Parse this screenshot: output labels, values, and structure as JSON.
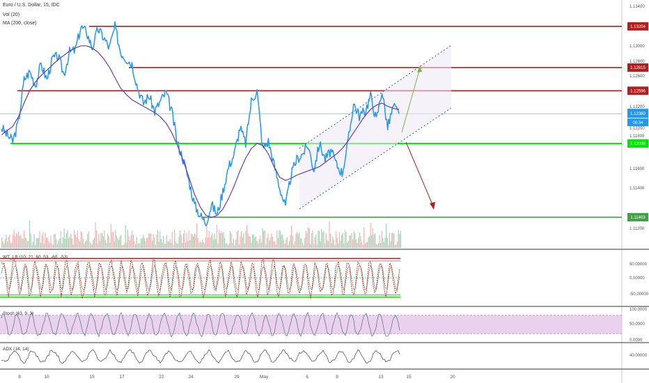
{
  "header": {
    "symbol": "Euro / U.S. Dollar, 15, IDC",
    "volume": "Vol (20)",
    "ma": "MA (200, close)"
  },
  "colors": {
    "price": "#2196f3",
    "ma": "#673ab7",
    "resistance": "#b71c1c",
    "support": "#00e600",
    "support_dark": "#43a047",
    "channel": "#1565c0",
    "arrow_up": "#7cb342",
    "arrow_down": "#b71c1c",
    "vol_up": "#8fc7a5",
    "vol_down": "#eda3a3",
    "panel_line": "#333333",
    "stoch_fill": "#e1bee7"
  },
  "chart_data": {
    "type": "line",
    "ylim": [
      1.111,
      1.134
    ],
    "yticks": [
      "1.13400",
      "1.13000",
      "1.12800",
      "1.12600",
      "1.12400",
      "1.12200",
      "1.12000",
      "1.11800",
      "1.11600",
      "1.11400",
      "1.11200"
    ],
    "xticks": [
      "8",
      "10",
      "15",
      "17",
      "22",
      "24",
      "29",
      "May",
      "6",
      "8",
      "13",
      "15",
      "20"
    ],
    "levels": [
      {
        "value": 1.13204,
        "label": "1.13204",
        "kind": "resistance"
      },
      {
        "value": 1.12815,
        "label": "1.12815",
        "kind": "resistance"
      },
      {
        "value": 1.12596,
        "label": "1.12596",
        "kind": "resistance"
      },
      {
        "value": 1.12098,
        "label": "1.12098",
        "kind": "support"
      },
      {
        "value": 1.11403,
        "label": "1.11403",
        "kind": "support"
      }
    ],
    "last_price": {
      "value": 1.1238,
      "label": "1.12380",
      "countdown": "00:34"
    },
    "extra_price_label": "1.12200",
    "price_series": [
      1.1225,
      1.1218,
      1.1212,
      1.123,
      1.127,
      1.1278,
      1.1265,
      1.1285,
      1.127,
      1.129,
      1.1292,
      1.1275,
      1.1296,
      1.1298,
      1.132,
      1.1315,
      1.13,
      1.1318,
      1.131,
      1.13,
      1.132,
      1.1296,
      1.129,
      1.1285,
      1.1262,
      1.1248,
      1.1255,
      1.124,
      1.125,
      1.1258,
      1.124,
      1.121,
      1.1195,
      1.1175,
      1.1152,
      1.1142,
      1.1135,
      1.1152,
      1.1143,
      1.1165,
      1.1188,
      1.12,
      1.1225,
      1.121,
      1.125,
      1.126,
      1.1205,
      1.1212,
      1.119,
      1.1168,
      1.115,
      1.118,
      1.1195,
      1.12,
      1.1208,
      1.1185,
      1.121,
      1.1195,
      1.1203,
      1.119,
      1.1182,
      1.121,
      1.1248,
      1.1236,
      1.124,
      1.1255,
      1.1232,
      1.126,
      1.1225,
      1.1245,
      1.1238
    ],
    "ma_series": [
      1.1218,
      1.1222,
      1.1226,
      1.1235,
      1.1248,
      1.126,
      1.1268,
      1.1274,
      1.1279,
      1.1284,
      1.1289,
      1.1293,
      1.1297,
      1.13,
      1.1302,
      1.1302,
      1.13,
      1.1296,
      1.129,
      1.1282,
      1.1272,
      1.1262,
      1.1256,
      1.1251,
      1.1248,
      1.1245,
      1.1242,
      1.1239,
      1.1235,
      1.1229,
      1.122,
      1.1208,
      1.1194,
      1.1178,
      1.1162,
      1.115,
      1.1142,
      1.114,
      1.1142,
      1.1148,
      1.1158,
      1.117,
      1.1184,
      1.1196,
      1.1205,
      1.121,
      1.1208,
      1.12,
      1.1188,
      1.1178,
      1.1175,
      1.1177,
      1.118,
      1.1182,
      1.1184,
      1.1186,
      1.1188,
      1.1192,
      1.1196,
      1.12,
      1.1205,
      1.1212,
      1.122,
      1.1228,
      1.1236,
      1.1242,
      1.1246,
      1.1248,
      1.1245,
      1.1243,
      1.1242
    ],
    "wt_lb": {
      "title": "WT_LB (10, 21, 60, 53, -60, -53)",
      "ylim": [
        -80,
        80
      ],
      "ticks": [
        "50.00000",
        "0.00000",
        "-50.00000"
      ],
      "levels": [
        60,
        53,
        -53,
        -60
      ]
    },
    "stoch": {
      "title": "Stoch (63, 9, 3)",
      "ylim": [
        0,
        100
      ],
      "ticks": [
        "100.0000",
        "50.0000",
        "0.0000"
      ],
      "band": [
        20,
        80
      ]
    },
    "adx": {
      "title": "ADX (14, 14)",
      "ticks": [
        "40.00000"
      ]
    }
  }
}
